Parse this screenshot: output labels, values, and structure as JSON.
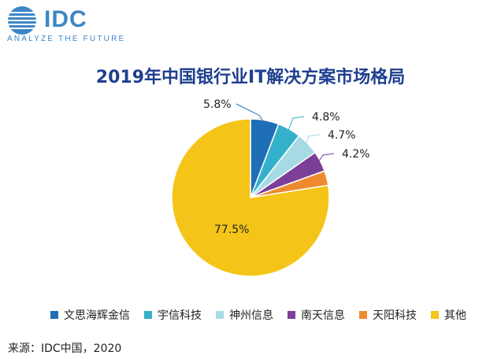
{
  "logo": {
    "wordmark": "IDC",
    "tagline": "ANALYZE THE FUTURE",
    "color": "#3d86c6"
  },
  "chart_data": {
    "type": "pie",
    "title": "2019年中国银行业IT解决方案市场格局",
    "slices": [
      {
        "label": "文思海辉金信",
        "value": 5.8,
        "display": "5.8%",
        "color": "#1f6fb6"
      },
      {
        "label": "宇信科技",
        "value": 4.8,
        "display": "4.8%",
        "color": "#35b0cb"
      },
      {
        "label": "神州信息",
        "value": 4.7,
        "display": "4.7%",
        "color": "#a6dbe6"
      },
      {
        "label": "南天信息",
        "value": 4.2,
        "display": "4.2%",
        "color": "#7c3f98"
      },
      {
        "label": "天阳科技",
        "value": 3.0,
        "display": "",
        "color": "#ee8a2d"
      },
      {
        "label": "其他",
        "value": 77.5,
        "display": "77.5%",
        "color": "#f4c518"
      }
    ],
    "legend_placement": "bottom"
  },
  "source": "来源：IDC中国，2020"
}
